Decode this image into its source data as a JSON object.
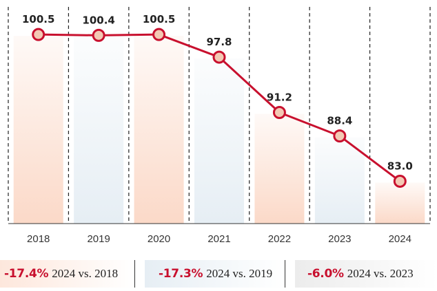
{
  "chart_data": {
    "type": "line",
    "categories": [
      "2018",
      "2019",
      "2020",
      "2021",
      "2022",
      "2023",
      "2024"
    ],
    "series": [
      {
        "values": [
          100.5,
          100.4,
          100.5,
          97.8,
          91.2,
          88.4,
          83.0
        ]
      }
    ],
    "data_labels": [
      "100.5",
      "100.4",
      "100.5",
      "97.8",
      "91.2",
      "88.4",
      "83.0"
    ],
    "ylim": [
      0,
      105
    ],
    "grid": "vertical-dashed",
    "colors": {
      "line": "#c8102e",
      "marker_fill": "#f3c9b4",
      "column_warm": "#fbd9c8",
      "column_cool": "#e6eef4",
      "pct_text": "#c8102e"
    }
  },
  "summaries": [
    {
      "pct": "-17.4%",
      "desc": "2024 vs. 2018"
    },
    {
      "pct": "-17.3%",
      "desc": "2024 vs. 2019"
    },
    {
      "pct": "-6.0%",
      "desc": "2024 vs. 2023"
    }
  ]
}
